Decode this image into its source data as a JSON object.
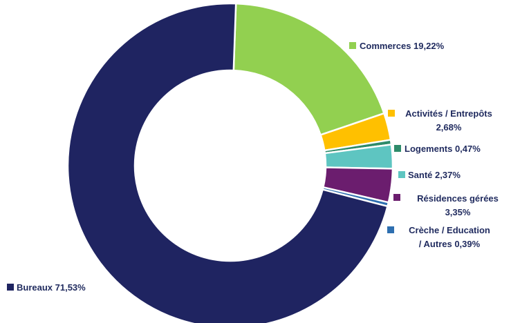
{
  "chart_data": {
    "type": "pie",
    "variant": "donut",
    "title": "",
    "legend": "labels-beside-slices",
    "slices": [
      {
        "label_lines": [
          "Commerces 19,22%"
        ],
        "value": 19.22,
        "color": "#92d050"
      },
      {
        "label_lines": [
          "Activités / Entrepôts",
          "2,68%"
        ],
        "value": 2.68,
        "color": "#ffc000"
      },
      {
        "label_lines": [
          "Logements 0,47%"
        ],
        "value": 0.47,
        "color": "#2e8b6a"
      },
      {
        "label_lines": [
          "Santé 2,37%"
        ],
        "value": 2.37,
        "color": "#5ec5c1"
      },
      {
        "label_lines": [
          "Résidences gérées",
          "3,35%"
        ],
        "value": 3.35,
        "color": "#6b1d6e"
      },
      {
        "label_lines": [
          "Crèche / Education",
          "/ Autres 0,39%"
        ],
        "value": 0.39,
        "color": "#2e6fb0"
      },
      {
        "label_lines": [
          "Bureaux 71,53%"
        ],
        "value": 71.53,
        "color": "#1f2461"
      }
    ]
  }
}
